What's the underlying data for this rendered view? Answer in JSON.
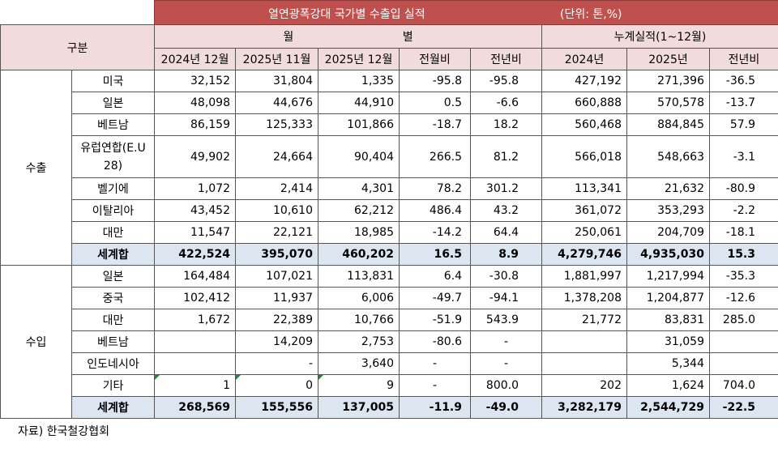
{
  "title": "열연광폭강대 국가별 수출입 실적",
  "unit": "(단위: 톤,%)",
  "header": {
    "category": "구분",
    "monthly": "월 별",
    "cumulative": "누계실적(1~12월)",
    "columns": [
      "2024년 12월",
      "2025년 11월",
      "2025년 12월",
      "전월비",
      "전년비",
      "2024년",
      "2025년",
      "전년비"
    ]
  },
  "groups": [
    {
      "name": "수출",
      "rows": [
        {
          "label": "미국",
          "cells": [
            "32,152",
            "31,804",
            "1,335",
            "-95.8",
            "-95.8",
            "427,192",
            "271,396",
            "-36.5"
          ]
        },
        {
          "label": "일본",
          "cells": [
            "48,098",
            "44,676",
            "44,910",
            "0.5",
            "-6.6",
            "660,888",
            "570,578",
            "-13.7"
          ]
        },
        {
          "label": "베트남",
          "cells": [
            "86,159",
            "125,333",
            "101,866",
            "-18.7",
            "18.2",
            "560,468",
            "884,845",
            "57.9"
          ]
        },
        {
          "label": "유럽연합(E.U 28)",
          "cells": [
            "49,902",
            "24,664",
            "90,404",
            "266.5",
            "81.2",
            "566,018",
            "548,663",
            "-3.1"
          ]
        },
        {
          "label": "벨기에",
          "cells": [
            "1,072",
            "2,414",
            "4,301",
            "78.2",
            "301.2",
            "113,341",
            "21,632",
            "-80.9"
          ]
        },
        {
          "label": "이탈리아",
          "cells": [
            "43,452",
            "10,610",
            "62,212",
            "486.4",
            "43.2",
            "361,072",
            "353,293",
            "-2.2"
          ]
        },
        {
          "label": "대만",
          "cells": [
            "11,547",
            "22,121",
            "18,985",
            "-14.2",
            "64.4",
            "250,061",
            "204,709",
            "-18.1"
          ]
        },
        {
          "label": "세계합",
          "total": true,
          "cells": [
            "422,524",
            "395,070",
            "460,202",
            "16.5",
            "8.9",
            "4,279,746",
            "4,935,030",
            "15.3"
          ]
        }
      ]
    },
    {
      "name": "수입",
      "rows": [
        {
          "label": "일본",
          "cells": [
            "164,484",
            "107,021",
            "113,831",
            "6.4",
            "-30.8",
            "1,881,997",
            "1,217,994",
            "-35.3"
          ]
        },
        {
          "label": "중국",
          "cells": [
            "102,412",
            "11,937",
            "6,006",
            "-49.7",
            "-94.1",
            "1,378,208",
            "1,204,877",
            "-12.6"
          ]
        },
        {
          "label": "대만",
          "cells": [
            "1,672",
            "22,389",
            "10,766",
            "-51.9",
            "543.9",
            "21,772",
            "83,831",
            "285.0"
          ]
        },
        {
          "label": "베트남",
          "cells": [
            null,
            "14,209",
            "2,753",
            "-80.6",
            "-",
            null,
            "31,059",
            null
          ]
        },
        {
          "label": "인도네시아",
          "cells": [
            null,
            "-",
            "3,640",
            "-",
            "-",
            null,
            "5,344",
            null
          ]
        },
        {
          "label": "기타",
          "cells": [
            "1",
            "0",
            "9",
            "-",
            "800.0",
            "202",
            "1,624",
            "704.0"
          ]
        },
        {
          "label": "세계합",
          "total": true,
          "cells": [
            "268,569",
            "155,556",
            "137,005",
            "-11.9",
            "-49.0",
            "3,282,179",
            "2,544,729",
            "-22.5"
          ]
        }
      ]
    }
  ],
  "source": "자료) 한국철강협회"
}
